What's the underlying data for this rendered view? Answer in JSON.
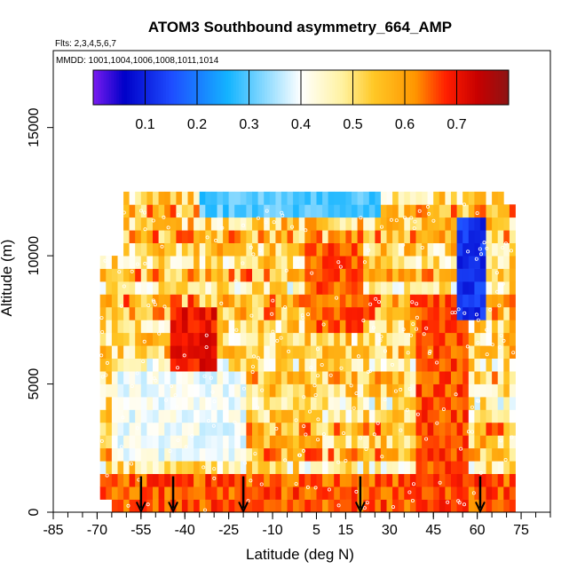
{
  "chart_data": {
    "type": "heatmap",
    "title": "ATOM3 Southbound asymmetry_664_AMP",
    "flights_note": "Flts: 2,3,4,5,6,7",
    "dates_note": "MMDD: 1001,1004,1006,1008,1011,1014",
    "xlabel": "Latitude (deg N)",
    "ylabel": "Altitude (m)",
    "xlim": [
      -85,
      85
    ],
    "ylim": [
      0,
      18000
    ],
    "x_tick_labels": [
      "-85",
      "-70",
      "-55",
      "-40",
      "-25",
      "-10",
      "5",
      "15",
      "30",
      "45",
      "60",
      "75"
    ],
    "x_tick_values": [
      -85,
      -70,
      -55,
      -40,
      -25,
      -10,
      5,
      15,
      30,
      45,
      60,
      75
    ],
    "y_tick_labels": [
      "0",
      "5000",
      "10000",
      "15000"
    ],
    "y_tick_values": [
      0,
      5000,
      10000,
      15000
    ],
    "colorbar": {
      "range": [
        0.0,
        0.8
      ],
      "tick_labels": [
        "0.1",
        "0.2",
        "0.3",
        "0.4",
        "0.5",
        "0.6",
        "0.7"
      ],
      "tick_values": [
        0.1,
        0.2,
        0.3,
        0.4,
        0.5,
        0.6,
        0.7
      ],
      "stops": [
        {
          "v": 0.0,
          "color": "#7a1cf0"
        },
        {
          "v": 0.06,
          "color": "#0000c8"
        },
        {
          "v": 0.15,
          "color": "#1e4cff"
        },
        {
          "v": 0.26,
          "color": "#14b4ff"
        },
        {
          "v": 0.4,
          "color": "#ffffff"
        },
        {
          "v": 0.48,
          "color": "#fff2a0"
        },
        {
          "v": 0.54,
          "color": "#ffc826"
        },
        {
          "v": 0.62,
          "color": "#ff9600"
        },
        {
          "v": 0.68,
          "color": "#ff1e00"
        },
        {
          "v": 0.74,
          "color": "#c80000"
        },
        {
          "v": 0.8,
          "color": "#8c1414"
        }
      ]
    },
    "profile_latitudes": [
      -55,
      -44,
      -20,
      20,
      61
    ],
    "field": {
      "lat_min": -69,
      "lat_max": 73,
      "alt_top": 12500,
      "features": [
        {
          "lat": [
            -45,
            -30
          ],
          "alt": [
            5500,
            7500
          ],
          "value": 0.7
        },
        {
          "lat": [
            38,
            55
          ],
          "alt": [
            0,
            8000
          ],
          "value": 0.66
        },
        {
          "lat": [
            52,
            62
          ],
          "alt": [
            7500,
            11000
          ],
          "value": 0.12
        },
        {
          "lat": [
            -35,
            25
          ],
          "alt": [
            11500,
            13000
          ],
          "value": 0.3
        },
        {
          "lat": [
            0,
            20
          ],
          "alt": [
            7000,
            10000
          ],
          "value": 0.65
        },
        {
          "lat": [
            -65,
            -20
          ],
          "alt": [
            2000,
            5000
          ],
          "value": 0.4
        }
      ]
    }
  }
}
